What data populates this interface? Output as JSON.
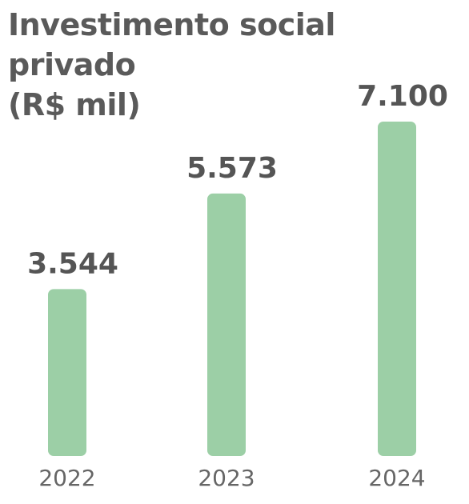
{
  "chart_data": {
    "type": "bar",
    "title_lines": [
      "Investimento social privado",
      "(R$ mil)"
    ],
    "categories": [
      "2022",
      "2023",
      "2024"
    ],
    "values": [
      3544,
      5573,
      7100
    ],
    "value_labels": [
      "3.544",
      "5.573",
      "7.100"
    ],
    "ylim": [
      0,
      7100
    ],
    "grid": false,
    "bar_color": "#9ccfa6",
    "text_color": "#555555"
  }
}
